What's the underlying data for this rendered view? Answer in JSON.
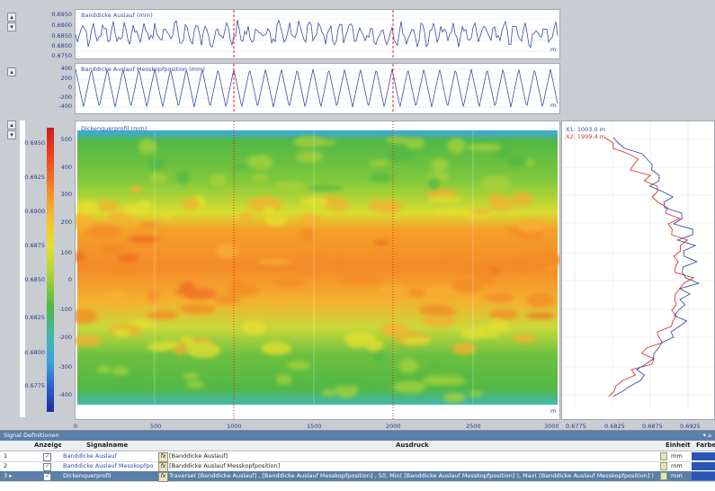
{
  "colors": {
    "line": "#3a4fa3",
    "red": "#e33030",
    "cursor": "#e02020"
  },
  "top_chart": {
    "legend": "Banddicke Auslauf (mm)",
    "yticks": [
      "0.6950",
      "0.6900",
      "0.6850",
      "0.6800",
      "0.6750"
    ],
    "unit": "m"
  },
  "mid_chart": {
    "legend": "Banddicke Auslauf Messkopfposition (mm)",
    "yticks": [
      "400",
      "200",
      "0",
      "-200",
      "-400"
    ],
    "unit": "m"
  },
  "heatmap": {
    "legend": "Dickenquerprofil (mm)",
    "yticks": [
      "500",
      "400",
      "300",
      "200",
      "100",
      "0",
      "-100",
      "-200",
      "-300",
      "-400"
    ],
    "xticks": [
      "0",
      "500",
      "1000",
      "1500",
      "2000",
      "2500",
      "3000"
    ],
    "unit": "m",
    "colorbar_ticks": [
      "0.6950",
      "0.6925",
      "0.6900",
      "0.6875",
      "0.6850",
      "0.6825",
      "0.6800",
      "0.6775"
    ]
  },
  "profile_chart": {
    "cursor1": "X1: 1003.0 m",
    "cursor2": "X2: 1999.4 m",
    "xticks": [
      "0.6775",
      "0.6825",
      "0.6875",
      "0.6925"
    ]
  },
  "panel": {
    "title": "Signal Definitionen",
    "pin": "▾ a",
    "headers": {
      "anzeige": "Anzeige",
      "signalname": "Signalname",
      "ausdruck": "Ausdruck",
      "einheit": "Einheit",
      "farbe": "Farbe"
    },
    "rows": [
      {
        "num": "1",
        "name": "Banddicke Auslauf",
        "expr": "[Banddicke Auslauf]",
        "unit": "mm"
      },
      {
        "num": "2",
        "name": "Banddicke Auslauf Messkopfpo",
        "expr": "[Banddicke Auslauf Messkopfposition]",
        "unit": "mm"
      },
      {
        "num": "3 ▸",
        "name": "Dickenquerprofil",
        "expr": "Traverse( [Banddicke Auslauf] , [Banddicke Auslauf Messkopfposition] , 50, Min( [Banddicke Auslauf Messkopfposition] ), Max( [Banddicke Auslauf Messkopfposition] ) )",
        "unit": "mm"
      }
    ]
  }
}
